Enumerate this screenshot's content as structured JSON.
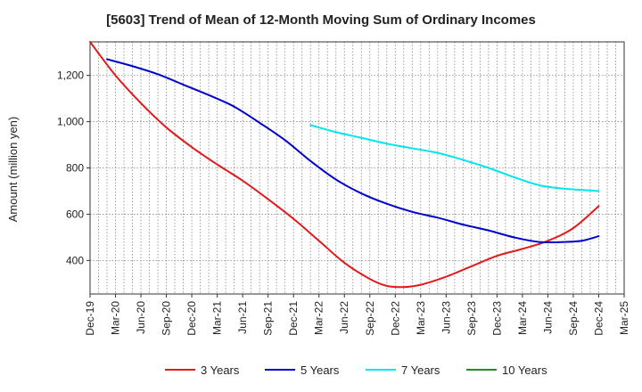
{
  "chart_data": {
    "type": "line",
    "title": "[5603]  Trend of Mean of 12-Month Moving Sum of Ordinary Incomes",
    "xlabel": "",
    "ylabel": "Amount (million yen)",
    "ylim": [
      255,
      1345
    ],
    "yticks": [
      400,
      600,
      800,
      1000,
      1200
    ],
    "ytick_labels": [
      "400",
      "600",
      "800",
      "1,000",
      "1,200"
    ],
    "grid": true,
    "legend_position": "bottom-center",
    "x_index_range": [
      0,
      63
    ],
    "x_tick_labels": [
      "Dec-19",
      "Mar-20",
      "Jun-20",
      "Sep-20",
      "Dec-20",
      "Mar-21",
      "Jun-21",
      "Sep-21",
      "Dec-21",
      "Mar-22",
      "Jun-22",
      "Sep-22",
      "Dec-22",
      "Mar-23",
      "Jun-23",
      "Sep-23",
      "Dec-23",
      "Mar-24",
      "Jun-24",
      "Sep-24",
      "Dec-24",
      "Mar-25"
    ],
    "series": [
      {
        "name": "3 Years",
        "color": "#e31a1c",
        "points": [
          [
            0,
            1345
          ],
          [
            3,
            1200
          ],
          [
            6,
            1080
          ],
          [
            9,
            975
          ],
          [
            12,
            890
          ],
          [
            15,
            815
          ],
          [
            18,
            745
          ],
          [
            21,
            665
          ],
          [
            24,
            580
          ],
          [
            27,
            485
          ],
          [
            30,
            390
          ],
          [
            33,
            320
          ],
          [
            35,
            290
          ],
          [
            37,
            285
          ],
          [
            39,
            295
          ],
          [
            42,
            330
          ],
          [
            45,
            375
          ],
          [
            48,
            420
          ],
          [
            51,
            450
          ],
          [
            54,
            485
          ],
          [
            57,
            540
          ],
          [
            60,
            635
          ]
        ]
      },
      {
        "name": "5 Years",
        "color": "#0000cc",
        "points": [
          [
            2,
            1270
          ],
          [
            5,
            1240
          ],
          [
            8,
            1205
          ],
          [
            11,
            1160
          ],
          [
            14,
            1115
          ],
          [
            17,
            1065
          ],
          [
            20,
            995
          ],
          [
            23,
            920
          ],
          [
            26,
            830
          ],
          [
            29,
            750
          ],
          [
            32,
            690
          ],
          [
            35,
            645
          ],
          [
            38,
            610
          ],
          [
            41,
            585
          ],
          [
            44,
            555
          ],
          [
            47,
            530
          ],
          [
            50,
            500
          ],
          [
            53,
            480
          ],
          [
            56,
            480
          ],
          [
            58,
            485
          ],
          [
            60,
            505
          ]
        ]
      },
      {
        "name": "7 Years",
        "color": "#00e5ee",
        "points": [
          [
            26,
            985
          ],
          [
            29,
            955
          ],
          [
            32,
            930
          ],
          [
            35,
            905
          ],
          [
            38,
            885
          ],
          [
            41,
            865
          ],
          [
            44,
            835
          ],
          [
            47,
            800
          ],
          [
            50,
            760
          ],
          [
            53,
            725
          ],
          [
            56,
            710
          ],
          [
            58,
            705
          ],
          [
            60,
            700
          ]
        ]
      },
      {
        "name": "10 Years",
        "color": "#228b22",
        "points": []
      }
    ]
  }
}
